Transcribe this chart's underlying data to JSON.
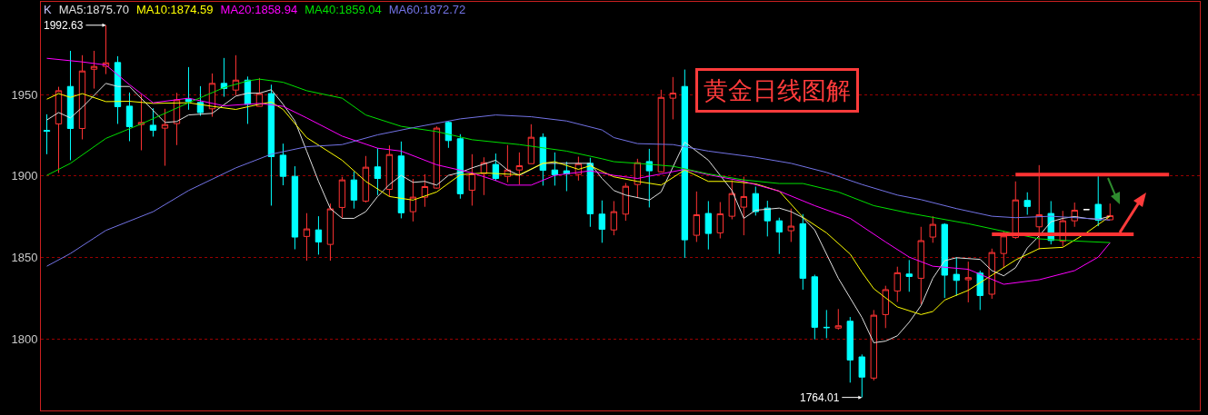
{
  "chart_data": {
    "type": "candlestick",
    "title": "黄金日线图解",
    "categories": [
      null,
      null,
      null,
      null,
      null,
      null,
      null,
      null,
      null,
      null,
      null,
      null,
      null,
      null,
      null,
      null,
      null,
      null,
      null,
      null,
      null,
      null,
      null,
      null,
      null,
      null,
      null,
      null,
      null,
      null,
      null,
      null,
      null,
      null,
      null,
      null,
      null,
      null,
      null,
      null,
      null,
      null,
      null,
      null,
      null,
      null,
      null,
      null,
      null,
      null,
      null,
      null,
      null,
      null,
      null,
      null,
      null,
      null,
      null,
      null,
      null,
      null,
      null,
      null,
      null,
      null,
      null,
      null,
      null,
      null,
      null,
      null,
      null,
      null,
      null,
      null,
      null,
      null,
      null,
      null,
      null,
      null,
      null,
      null,
      null,
      null,
      null,
      null,
      null,
      null,
      null,
      null,
      null,
      null,
      null,
      null
    ],
    "ylim": [
      1756,
      2007
    ],
    "yticks": [
      1800,
      1850,
      1900,
      1950
    ],
    "grid": "y",
    "annotations": [
      "K",
      "1992.63",
      "1764.01"
    ],
    "series": [
      {
        "colors": [
          "#00ffff",
          "#ff3333",
          "#00ffff",
          "#ff3333",
          "#ff3333",
          "#ff3333",
          "#00ffff",
          "#00ffff",
          "#ff3333",
          "#00ffff",
          "#ff3333",
          "#ff3333",
          "#00ffff",
          "#00ffff",
          "#ff3333",
          "#00ffff",
          "#ff3333",
          "#00ffff",
          "#ff3333",
          "#00ffff",
          "#00ffff",
          "#00ffff",
          "#ff3333",
          "#00ffff",
          "#ff3333",
          "#ff3333",
          "#00ffff",
          "#ff3333",
          "#00ffff",
          "#ff3333",
          "#00ffff",
          "#ff3333",
          "#ff3333",
          "#ff3333",
          "#00ffff",
          "#00ffff",
          "#ff3333",
          "#ff3333",
          "#00ffff",
          "#ff3333",
          "#ff3333",
          "#ff3333",
          "#00ffff",
          "#00ffff",
          "#00ffff",
          "#ff3333",
          "#00ffff",
          "#00ffff",
          "#ff3333",
          "#ff3333",
          "#ff3333",
          "#00ffff",
          "#ff3333",
          "#ff3333",
          "#00ffff",
          "#ff3333",
          "#00ffff",
          "#ff3333",
          "#ff3333",
          "#ff3333",
          "#00ffff",
          "#00ffff",
          "#00ffff",
          "#ff3333",
          "#00ffff",
          "#00ffff",
          "#00ffff",
          "#ff3333",
          "#00ffff",
          "#00ffff",
          "#ff3333",
          "#ff3333",
          "#ff3333",
          "#00ffff",
          "#ff3333",
          "#ff3333",
          "#00ffff",
          "#00ffff",
          "#ff3333",
          "#00ffff",
          "#ff3333",
          "#ff3333",
          "#ff3333",
          "#00ffff",
          "#ff3333",
          "#00ffff",
          "#ff3333",
          "#ff3333",
          "#ffffff",
          "#00ffff",
          "#ff3333",
          null,
          null,
          null,
          null,
          null
        ],
        "ohlc": [
          [
            1928.0,
            1937.9,
            1913.4,
            1927.5
          ],
          [
            1932.0,
            1954.8,
            1901.9,
            1952.4
          ],
          [
            1955.0,
            1976.9,
            1909.7,
            1929.2
          ],
          [
            1929.2,
            1974.2,
            1922.5,
            1964.5
          ],
          [
            1965.6,
            1976.9,
            1953.7,
            1967.3
          ],
          [
            1967.3,
            1992.63,
            1962.6,
            1969.5
          ],
          [
            1969.7,
            1973.6,
            1932.0,
            1942.6
          ],
          [
            1942.9,
            1951.3,
            1921.4,
            1930.3
          ],
          [
            1931.6,
            1950.0,
            1915.8,
            1932.9
          ],
          [
            1931.2,
            1941.6,
            1924.2,
            1928.1
          ],
          [
            1929.4,
            1941.3,
            1906.3,
            1931.6
          ],
          [
            1932.2,
            1951.1,
            1919.0,
            1946.8
          ],
          [
            1947.2,
            1966.9,
            1940.7,
            1945.7
          ],
          [
            1945.2,
            1955.2,
            1937.0,
            1939.0
          ],
          [
            1941.3,
            1963.0,
            1936.4,
            1956.9
          ],
          [
            1956.9,
            1972.5,
            1948.7,
            1953.7
          ],
          [
            1952.8,
            1974.2,
            1949.6,
            1958.9
          ],
          [
            1958.9,
            1961.1,
            1932.0,
            1944.1
          ],
          [
            1942.8,
            1960.2,
            1942.8,
            1950.6
          ],
          [
            1950.6,
            1956.1,
            1881.8,
            1911.9
          ],
          [
            1912.8,
            1919.9,
            1894.3,
            1899.8
          ],
          [
            1899.8,
            1906.0,
            1855.0,
            1862.5
          ],
          [
            1862.9,
            1877.2,
            1848.0,
            1867.5
          ],
          [
            1866.9,
            1875.3,
            1851.7,
            1859.5
          ],
          [
            1858.0,
            1883.1,
            1848.0,
            1879.8
          ],
          [
            1880.7,
            1899.5,
            1874.4,
            1897.6
          ],
          [
            1897.6,
            1902.6,
            1880.0,
            1885.2
          ],
          [
            1884.6,
            1912.3,
            1883.7,
            1905.4
          ],
          [
            1905.6,
            1917.1,
            1888.3,
            1898.5
          ],
          [
            1891.8,
            1918.8,
            1887.4,
            1913.2
          ],
          [
            1912.3,
            1921.2,
            1874.0,
            1877.4
          ],
          [
            1878.1,
            1898.2,
            1872.1,
            1887.0
          ],
          [
            1887.0,
            1901.1,
            1881.1,
            1893.5
          ],
          [
            1892.6,
            1930.5,
            1892.2,
            1929.4
          ],
          [
            1932.9,
            1933.6,
            1917.3,
            1921.8
          ],
          [
            1922.9,
            1925.7,
            1886.1,
            1889.1
          ],
          [
            1891.3,
            1913.4,
            1881.8,
            1901.3
          ],
          [
            1901.5,
            1911.5,
            1888.3,
            1908.2
          ],
          [
            1907.1,
            1913.8,
            1897.0,
            1898.5
          ],
          [
            1899.8,
            1919.0,
            1896.1,
            1903.7
          ],
          [
            1903.7,
            1914.5,
            1894.8,
            1906.3
          ],
          [
            1907.6,
            1931.8,
            1907.6,
            1923.8
          ],
          [
            1923.8,
            1926.2,
            1894.1,
            1903.5
          ],
          [
            1903.7,
            1914.5,
            1894.1,
            1900.8
          ],
          [
            1903.2,
            1908.8,
            1890.7,
            1901.3
          ],
          [
            1901.0,
            1911.9,
            1897.2,
            1907.6
          ],
          [
            1907.8,
            1911.2,
            1868.8,
            1876.8
          ],
          [
            1876.6,
            1885.0,
            1859.0,
            1867.3
          ],
          [
            1866.9,
            1884.6,
            1863.6,
            1878.1
          ],
          [
            1876.6,
            1895.7,
            1872.5,
            1893.7
          ],
          [
            1894.8,
            1910.6,
            1886.5,
            1908.2
          ],
          [
            1908.9,
            1916.7,
            1880.7,
            1903.2
          ],
          [
            1902.6,
            1953.0,
            1902.2,
            1948.3
          ],
          [
            1947.8,
            1960.8,
            1934.8,
            1950.9
          ],
          [
            1955.0,
            1965.4,
            1849.7,
            1860.8
          ],
          [
            1863.6,
            1890.5,
            1859.5,
            1876.2
          ],
          [
            1877.0,
            1884.6,
            1854.9,
            1864.7
          ],
          [
            1865.1,
            1884.0,
            1861.7,
            1876.8
          ],
          [
            1875.3,
            1897.4,
            1873.4,
            1889.2
          ],
          [
            1880.9,
            1899.6,
            1863.6,
            1887.4
          ],
          [
            1889.2,
            1893.5,
            1875.7,
            1878.1
          ],
          [
            1880.3,
            1884.8,
            1862.9,
            1872.5
          ],
          [
            1872.5,
            1874.4,
            1852.1,
            1865.6
          ],
          [
            1866.4,
            1880.0,
            1859.5,
            1869.2
          ],
          [
            1870.7,
            1876.6,
            1830.2,
            1837.2
          ],
          [
            1838.1,
            1839.4,
            1799.7,
            1807.1
          ],
          [
            1807.1,
            1817.7,
            1800.4,
            1806.9
          ],
          [
            1806.6,
            1818.3,
            1805.6,
            1808.0
          ],
          [
            1810.8,
            1813.4,
            1773.1,
            1787.0
          ],
          [
            1788.9,
            1790.4,
            1764.01,
            1776.5
          ],
          [
            1775.9,
            1817.7,
            1774.4,
            1814.5
          ],
          [
            1814.9,
            1832.6,
            1806.6,
            1830.2
          ],
          [
            1829.4,
            1844.3,
            1822.7,
            1840.6
          ],
          [
            1839.8,
            1848.4,
            1828.9,
            1838.3
          ],
          [
            1837.2,
            1868.8,
            1821.4,
            1860.3
          ],
          [
            1862.5,
            1875.3,
            1859.0,
            1870.3
          ],
          [
            1870.3,
            1871.0,
            1825.1,
            1839.1
          ],
          [
            1839.6,
            1850.2,
            1826.4,
            1835.9
          ],
          [
            1836.3,
            1847.4,
            1822.4,
            1837.6
          ],
          [
            1840.4,
            1841.9,
            1817.7,
            1826.6
          ],
          [
            1827.4,
            1855.4,
            1824.6,
            1853.0
          ],
          [
            1852.4,
            1866.0,
            1843.7,
            1863.2
          ],
          [
            1862.3,
            1896.7,
            1861.4,
            1885.3
          ],
          [
            1885.0,
            1890.0,
            1876.2,
            1881.3
          ],
          [
            1868.8,
            1906.7,
            1854.9,
            1876.2
          ],
          [
            1877.0,
            1884.6,
            1858.0,
            1860.4
          ],
          [
            1859.9,
            1878.6,
            1856.7,
            1872.5
          ],
          [
            1872.5,
            1883.7,
            1868.8,
            1879.0
          ],
          [
            1879.4,
            1879.4,
            1879.4,
            1879.4
          ],
          [
            1882.6,
            1899.8,
            1869.2,
            1872.9
          ],
          [
            1873.1,
            1883.1,
            1873.1,
            1875.7
          ],
          null,
          null,
          null,
          null,
          null
        ]
      },
      {
        "name": "MA5:1875.70",
        "type": "line",
        "color": "#e0e0e0",
        "values": [
          1934.4,
          1939.0,
          1935.7,
          1942.2,
          null,
          1956.9,
          1955.0,
          1955.0,
          null,
          null,
          1932.9,
          1933.5,
          1937.5,
          null,
          1938.5,
          null,
          1949.1,
          1950.9,
          1950.9,
          1953.0,
          1944.1,
          1933.8,
          1915.3,
          1896.7,
          1880.0,
          1874.0,
          1874.0,
          1878.1,
          1887.4,
          1894.8,
          1900.4,
          1896.1,
          1896.7,
          1894.4,
          1900.4,
          1902.2,
          1905.0,
          null,
          1909.7,
          1903.7,
          1900.4,
          null,
          1907.8,
          null,
          1907.8,
          null,
          1907.8,
          1898.5,
          1891.1,
          1888.3,
          null,
          1885.2,
          1890.2,
          null,
          1920.8,
          null,
          1909.7,
          null,
          1891.1,
          1874.0,
          1879.0,
          1879.6,
          1880.3,
          1878.1,
          1874.4,
          1866.9,
          null,
          1837.2,
          null,
          1813.1,
          1797.6,
          1798.6,
          1801.9,
          1810.2,
          1820.4,
          1837.2,
          1848.0,
          1849.8,
          null,
          1848.8,
          1841.9,
          1838.7,
          1843.7,
          1855.8,
          1863.2,
          1871.9,
          1874.0,
          1875.1,
          1874.0,
          1873.4,
          1875.3,
          null,
          null,
          null,
          null,
          null
        ]
      },
      {
        "name": "MA10:1874.59",
        "type": "line",
        "color": "#ffff00",
        "values": [
          1947.2,
          1950.6,
          1948.3,
          1950.6,
          null,
          1945.7,
          null,
          1945.9,
          null,
          1944.6,
          null,
          null,
          1945.0,
          null,
          1942.8,
          null,
          1940.9,
          null,
          1944.1,
          1945.4,
          1940.9,
          null,
          1923.6,
          null,
          null,
          1909.7,
          null,
          1896.7,
          null,
          1887.4,
          null,
          1885.2,
          null,
          1890.2,
          null,
          1900.8,
          null,
          1901.9,
          null,
          null,
          1900.8,
          null,
          1907.8,
          1908.8,
          null,
          1904.1,
          1906.3,
          null,
          1899.5,
          null,
          1896.7,
          null,
          1894.4,
          null,
          1903.7,
          null,
          1896.7,
          null,
          1896.7,
          null,
          1895.2,
          null,
          1890.7,
          null,
          1874.7,
          null,
          1865.1,
          null,
          1852.1,
          1840.9,
          1830.8,
          null,
          1819.6,
          null,
          1814.9,
          1816.8,
          1823.8,
          null,
          1829.8,
          null,
          1839.1,
          null,
          1848.4,
          null,
          1855.4,
          null,
          1856.2,
          null,
          1865.1,
          null,
          1875.3,
          null,
          null,
          null,
          null,
          null
        ]
      },
      {
        "name": "MA20:1858.94",
        "type": "line",
        "color": "#ff00ff",
        "values": [
          1972.3,
          null,
          null,
          1970.1,
          null,
          1968.2,
          null,
          1956.1,
          null,
          1945.0,
          null,
          null,
          1947.8,
          null,
          null,
          1943.1,
          null,
          null,
          1944.6,
          null,
          1942.8,
          null,
          1935.7,
          null,
          null,
          1924.5,
          null,
          null,
          1917.1,
          null,
          1915.3,
          null,
          null,
          1906.9,
          null,
          null,
          1901.9,
          null,
          1897.2,
          1894.4,
          null,
          1894.4,
          null,
          1900.4,
          null,
          null,
          1903.2,
          null,
          1900.4,
          null,
          1898.5,
          null,
          1901.3,
          null,
          1904.1,
          null,
          1900.8,
          null,
          null,
          1896.7,
          null,
          null,
          1890.7,
          null,
          null,
          1881.8,
          null,
          null,
          1874.0,
          null,
          null,
          1859.5,
          null,
          1850.2,
          null,
          1844.6,
          null,
          null,
          1842.7,
          null,
          null,
          1833.5,
          null,
          null,
          1836.3,
          null,
          null,
          1841.9,
          null,
          1850.2,
          1859.0,
          null,
          null,
          null,
          null,
          null
        ]
      },
      {
        "name": "MA40:1859.04",
        "type": "line",
        "color": "#00e000",
        "values": [
          1900.4,
          null,
          1907.8,
          null,
          null,
          1923.1,
          null,
          null,
          1932.0,
          null,
          null,
          null,
          1945.0,
          null,
          null,
          1954.3,
          null,
          1958.4,
          1959.5,
          null,
          1957.6,
          null,
          1952.4,
          null,
          null,
          1947.8,
          null,
          1937.5,
          null,
          null,
          1930.5,
          null,
          null,
          1927.3,
          null,
          null,
          1922.3,
          null,
          null,
          null,
          1919.3,
          null,
          null,
          null,
          1915.3,
          null,
          null,
          1910.6,
          1908.8,
          null,
          1907.8,
          null,
          null,
          1906.0,
          null,
          null,
          1901.3,
          null,
          null,
          1897.6,
          null,
          null,
          1895.4,
          null,
          1895.4,
          null,
          null,
          1890.2,
          null,
          null,
          1881.8,
          null,
          null,
          1877.2,
          null,
          null,
          null,
          null,
          1870.7,
          null,
          null,
          null,
          null,
          null,
          1861.4,
          null,
          null,
          1860.1,
          null,
          null,
          1859.1,
          null,
          null,
          null,
          null,
          null
        ]
      },
      {
        "name": "MA60:1872.72",
        "type": "line",
        "color": "#7373e6",
        "values": [
          1844.6,
          null,
          1852.4,
          null,
          null,
          1866.6,
          null,
          null,
          null,
          1878.1,
          null,
          null,
          1891.1,
          null,
          null,
          null,
          1905.0,
          null,
          null,
          1913.4,
          null,
          null,
          1918.0,
          null,
          null,
          1919.3,
          null,
          null,
          1925.3,
          null,
          null,
          1929.7,
          null,
          null,
          null,
          1935.1,
          null,
          null,
          1937.5,
          null,
          null,
          1936.4,
          null,
          null,
          1933.8,
          null,
          null,
          1928.3,
          1923.6,
          null,
          1919.9,
          null,
          null,
          1919.3,
          null,
          null,
          1915.3,
          null,
          null,
          null,
          1911.5,
          null,
          null,
          1907.8,
          null,
          null,
          1902.2,
          null,
          null,
          1894.8,
          null,
          null,
          1888.3,
          null,
          1885.5,
          null,
          null,
          1880.0,
          null,
          null,
          1875.3,
          null,
          1874.4,
          null,
          null,
          1875.3,
          null,
          null,
          1874.0,
          null,
          1872.9,
          null,
          null,
          null,
          null,
          null
        ]
      },
      {
        "type": "line",
        "color": "#ff3333",
        "values": [
          null,
          null,
          null,
          null,
          null,
          null,
          null,
          null,
          null,
          null,
          null,
          null,
          null,
          null,
          null,
          null,
          null,
          null,
          null,
          null,
          null,
          null,
          null,
          null,
          null,
          null,
          null,
          null,
          null,
          null,
          null,
          null,
          null,
          null,
          null,
          null,
          null,
          null,
          null,
          null,
          null,
          null,
          null,
          null,
          null,
          null,
          null,
          null,
          null,
          null,
          null,
          null,
          null,
          null,
          null,
          null,
          null,
          null,
          null,
          null,
          null,
          null,
          null,
          null,
          null,
          null,
          null,
          null,
          null,
          null,
          null,
          null,
          null,
          null,
          null,
          null,
          null,
          null,
          null,
          null,
          null,
          null,
          1900.9,
          null,
          null,
          null,
          null,
          null,
          null,
          null,
          null,
          null,
          null,
          null,
          null,
          1900.9
        ]
      },
      {
        "type": "line",
        "color": "#ff3333",
        "values": [
          null,
          null,
          null,
          null,
          null,
          null,
          null,
          null,
          null,
          null,
          null,
          null,
          null,
          null,
          null,
          null,
          null,
          null,
          null,
          null,
          null,
          null,
          null,
          null,
          null,
          null,
          null,
          null,
          null,
          null,
          null,
          null,
          null,
          null,
          null,
          null,
          null,
          null,
          null,
          null,
          null,
          null,
          null,
          null,
          null,
          null,
          null,
          null,
          null,
          null,
          null,
          null,
          null,
          null,
          null,
          null,
          null,
          null,
          null,
          null,
          null,
          null,
          null,
          null,
          null,
          null,
          null,
          null,
          null,
          null,
          null,
          null,
          null,
          null,
          null,
          null,
          null,
          null,
          null,
          null,
          1864.2,
          null,
          null,
          null,
          null,
          null,
          null,
          null,
          null,
          null,
          null,
          null,
          1864.2,
          null,
          null,
          null
        ]
      }
    ]
  }
}
